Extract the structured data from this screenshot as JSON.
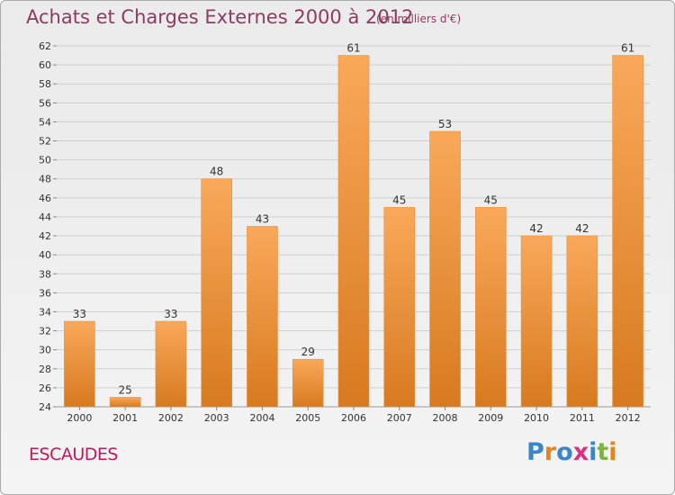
{
  "header": {
    "title": "Achats et Charges Externes 2000 à 2012",
    "subtitle": "(en milliers d'€)"
  },
  "footer": {
    "commune": "ESCAUDES",
    "brand": "Proxiti",
    "brand_colors": [
      "#3a86c8",
      "#e8821e",
      "#3a86c8",
      "#d63384",
      "#3a86c8",
      "#7fb241",
      "#e8821e"
    ]
  },
  "colors": {
    "bar_top": "#f9a85a",
    "bar_bottom": "#d77a1f",
    "grid": "#cfcfcf",
    "title": "#8e3b63",
    "commune": "#c2185b"
  },
  "chart_data": {
    "type": "bar",
    "title": "Achats et Charges Externes 2000 à 2012",
    "subtitle": "(en milliers d'€)",
    "categories": [
      "2000",
      "2001",
      "2002",
      "2003",
      "2004",
      "2005",
      "2006",
      "2007",
      "2008",
      "2009",
      "2010",
      "2011",
      "2012"
    ],
    "values": [
      33,
      25,
      33,
      48,
      43,
      29,
      61,
      45,
      53,
      45,
      42,
      42,
      61
    ],
    "ylim": [
      24,
      62
    ],
    "yticks": [
      24,
      26,
      28,
      30,
      32,
      34,
      36,
      38,
      40,
      42,
      44,
      46,
      48,
      50,
      52,
      54,
      56,
      58,
      60,
      62
    ],
    "grid": true,
    "data_labels": true
  }
}
